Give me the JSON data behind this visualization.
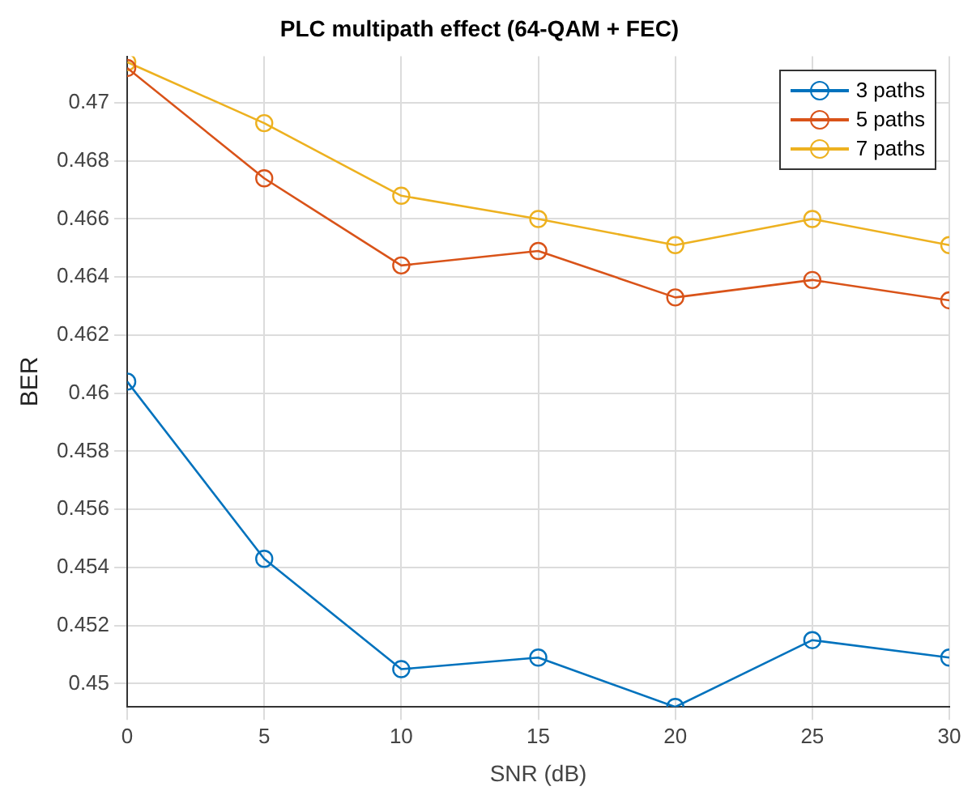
{
  "chart_data": {
    "type": "line",
    "title": "PLC multipath effect (64-QAM + FEC)",
    "xlabel": "SNR (dB)",
    "ylabel": "BER",
    "x": [
      0,
      5,
      10,
      15,
      20,
      25,
      30
    ],
    "series": [
      {
        "name": "3 paths",
        "color": "#0072bd",
        "values": [
          0.4604,
          0.4543,
          0.4505,
          0.4509,
          0.4492,
          0.4515,
          0.4509
        ]
      },
      {
        "name": "5 paths",
        "color": "#d95319",
        "values": [
          0.4712,
          0.4674,
          0.4644,
          0.4649,
          0.4633,
          0.4639,
          0.4632
        ]
      },
      {
        "name": "7 paths",
        "color": "#edb120",
        "values": [
          0.4714,
          0.4693,
          0.4668,
          0.466,
          0.4651,
          0.466,
          0.4651
        ]
      }
    ],
    "xlim": [
      0,
      30
    ],
    "xticks": [
      0,
      5,
      10,
      15,
      20,
      25,
      30
    ],
    "ylim": [
      0.4492,
      0.4716
    ],
    "yticks": [
      0.45,
      0.452,
      0.454,
      0.456,
      0.458,
      0.46,
      0.462,
      0.464,
      0.466,
      0.468,
      0.47
    ],
    "grid": true,
    "legend": "top right",
    "marker": "circle",
    "line_style": "solid"
  }
}
